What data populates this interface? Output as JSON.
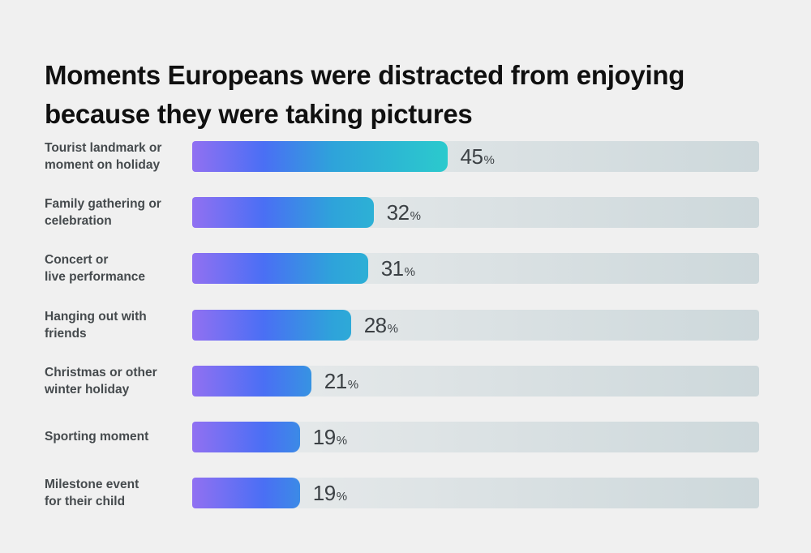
{
  "page": {
    "background": "#f0f0f0"
  },
  "header": {
    "title_lines": "Moments Europeans were distracted from enjoying\nbecause they were taking pictures"
  },
  "colors": {
    "background": "#f0f0f0",
    "title_text": "#101010",
    "label_text": "#454a4d",
    "value_text": "#3b4044",
    "bar_gradient_stops": [
      "#9170F2",
      "#4A6FF4",
      "#2EA3DA",
      "#2BCACD"
    ],
    "bar_gradient_positions": [
      0,
      28,
      55,
      100
    ],
    "track_gradient": [
      "#eaeced",
      "#cdd8db"
    ]
  },
  "chart_data": {
    "type": "bar",
    "orientation": "horizontal",
    "title": "Moments Europeans were distracted from enjoying because they were taking pictures",
    "unit": "%",
    "categories": [
      "Tourist landmark or\nmoment on holiday",
      "Family gathering or\ncelebration",
      "Concert or\nlive performance",
      "Hanging out with\nfriends",
      "Christmas or other\nwinter holiday",
      "Sporting moment",
      "Milestone event\nfor their child"
    ],
    "values": [
      45,
      32,
      31,
      28,
      21,
      19,
      19
    ],
    "value_labels": [
      "45%",
      "32%",
      "31%",
      "28%",
      "21%",
      "19%",
      "19%"
    ],
    "xlim": [
      0,
      100
    ],
    "gradient_span_value": 45,
    "grid": false,
    "legend": false
  }
}
